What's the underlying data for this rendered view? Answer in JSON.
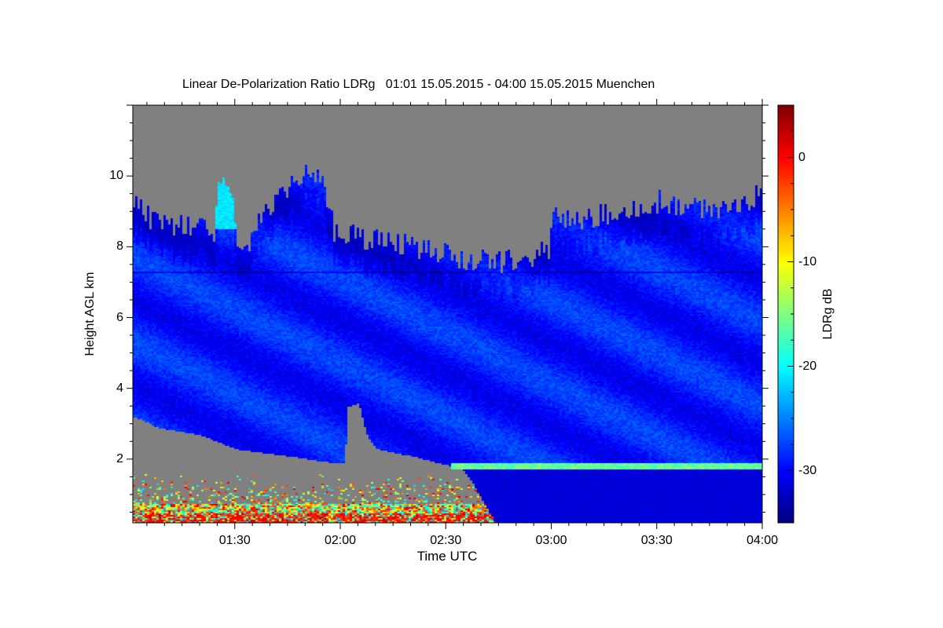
{
  "chart_data": {
    "type": "heatmap",
    "title": "Linear De-Polarization Ratio LDRg   01:01 15.05.2015 - 04:00 15.05.2015 Muenchen",
    "xlabel": "Time UTC",
    "ylabel": "Height AGL km",
    "colorbar_label": "LDRg dB",
    "xlim_minutes_after_0100": [
      1,
      180
    ],
    "ylim": [
      0.2,
      12.0
    ],
    "clim": [
      -35,
      5
    ],
    "colormap": "jet",
    "nodata_color": "#808080",
    "xticks": [
      {
        "label": "01:30",
        "minute": 30
      },
      {
        "label": "02:00",
        "minute": 60
      },
      {
        "label": "02:30",
        "minute": 90
      },
      {
        "label": "03:00",
        "minute": 120
      },
      {
        "label": "03:30",
        "minute": 150
      },
      {
        "label": "04:00",
        "minute": 180
      }
    ],
    "yticks": [
      {
        "label": "2",
        "value": 2
      },
      {
        "label": "4",
        "value": 4
      },
      {
        "label": "6",
        "value": 6
      },
      {
        "label": "8",
        "value": 8
      },
      {
        "label": "10",
        "value": 10
      }
    ],
    "cticks": [
      {
        "label": "0",
        "value": 0
      },
      {
        "label": "-10",
        "value": -10
      },
      {
        "label": "-20",
        "value": -20
      },
      {
        "label": "-30",
        "value": -30
      }
    ],
    "features": {
      "cloud_top_km": [
        [
          1,
          9.5
        ],
        [
          6,
          8.8
        ],
        [
          15,
          8.6
        ],
        [
          24,
          8.5
        ],
        [
          25,
          9.8
        ],
        [
          29,
          9.6
        ],
        [
          31,
          7.6
        ],
        [
          36,
          8.6
        ],
        [
          45,
          9.8
        ],
        [
          54,
          10.2
        ],
        [
          58,
          8.5
        ],
        [
          70,
          8.2
        ],
        [
          85,
          7.9
        ],
        [
          95,
          7.7
        ],
        [
          110,
          7.6
        ],
        [
          119,
          7.9
        ],
        [
          120,
          9.2
        ],
        [
          125,
          8.7
        ],
        [
          140,
          9.0
        ],
        [
          150,
          9.3
        ],
        [
          165,
          9.0
        ],
        [
          180,
          9.5
        ]
      ],
      "cloud_base_km": [
        [
          1,
          3.2
        ],
        [
          4,
          3.1
        ],
        [
          8,
          2.9
        ],
        [
          14,
          2.8
        ],
        [
          20,
          2.7
        ],
        [
          30,
          2.3
        ],
        [
          45,
          2.1
        ],
        [
          58,
          1.9
        ],
        [
          61,
          1.9
        ],
        [
          62,
          3.5
        ],
        [
          65,
          3.6
        ],
        [
          67,
          2.8
        ],
        [
          68,
          2.6
        ],
        [
          70,
          2.3
        ],
        [
          80,
          2.1
        ],
        [
          90,
          1.85
        ],
        [
          94,
          1.8
        ],
        [
          97,
          1.4
        ],
        [
          100,
          0.9
        ],
        [
          104,
          0.2
        ],
        [
          180,
          0.2
        ]
      ],
      "cloud_ldr_db": -29,
      "aerosol_layer": {
        "minute_range": [
          1,
          104
        ],
        "height_range_km": [
          0.2,
          1.6
        ],
        "ldr_range_db": [
          -22,
          2
        ]
      },
      "melting_layer": {
        "minute_range": [
          91,
          180
        ],
        "height_km": 1.8,
        "ldr_db": -16
      }
    }
  }
}
